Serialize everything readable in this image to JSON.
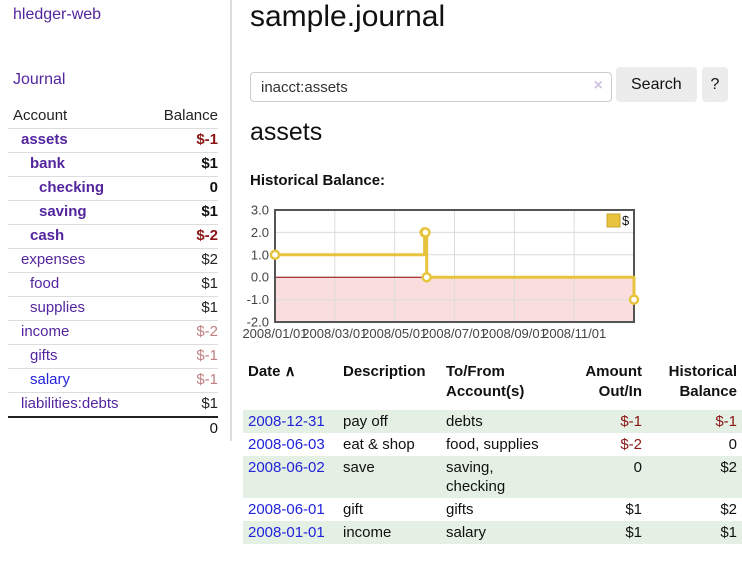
{
  "app": {
    "brand": "hledger-web",
    "nav_journal_label": "Journal"
  },
  "sidebar": {
    "header": {
      "account": "Account",
      "balance": "Balance"
    },
    "accounts": [
      {
        "name": "assets",
        "depth": 0,
        "bold": true,
        "link_color": "purple",
        "balance": "$-1",
        "balance_style": "neg-strong"
      },
      {
        "name": "bank",
        "depth": 1,
        "bold": true,
        "link_color": "purple",
        "balance": "$1",
        "balance_style": "strong"
      },
      {
        "name": "checking",
        "depth": 2,
        "bold": true,
        "link_color": "purple",
        "balance": "0",
        "balance_style": "strong"
      },
      {
        "name": "saving",
        "depth": 2,
        "bold": true,
        "link_color": "purple",
        "balance": "$1",
        "balance_style": "strong"
      },
      {
        "name": "cash",
        "depth": 1,
        "bold": true,
        "link_color": "purple",
        "balance": "$-2",
        "balance_style": "neg-strong"
      },
      {
        "name": "expenses",
        "depth": 0,
        "bold": false,
        "link_color": "purple",
        "balance": "$2",
        "balance_style": "plain"
      },
      {
        "name": "food",
        "depth": 1,
        "bold": false,
        "link_color": "purple",
        "balance": "$1",
        "balance_style": "plain"
      },
      {
        "name": "supplies",
        "depth": 1,
        "bold": false,
        "link_color": "purple",
        "balance": "$1",
        "balance_style": "plain"
      },
      {
        "name": "income",
        "depth": 0,
        "bold": false,
        "link_color": "purple",
        "balance": "$-2",
        "balance_style": "neg-dim"
      },
      {
        "name": "gifts",
        "depth": 1,
        "bold": false,
        "link_color": "purple",
        "balance": "$-1",
        "balance_style": "neg-dim"
      },
      {
        "name": "salary",
        "depth": 1,
        "bold": false,
        "link_color": "blue",
        "balance": "$-1",
        "balance_style": "neg-dim"
      },
      {
        "name": "liabilities:debts",
        "depth": 0,
        "bold": false,
        "link_color": "purple",
        "balance": "$1",
        "balance_style": "plain"
      }
    ],
    "total": "0"
  },
  "header": {
    "title": "sample.journal"
  },
  "search": {
    "value": "inacct:assets",
    "clear_icon": "×",
    "button_label": "Search",
    "help_label": "?"
  },
  "main": {
    "account_title": "assets",
    "chart_label": "Historical Balance:"
  },
  "chart_data": {
    "type": "line",
    "title": "Historical Balance",
    "step": true,
    "series": [
      {
        "name": "$",
        "color": "#e8c33d",
        "points": [
          {
            "date": "2008-01-01",
            "m": 0,
            "value": 1
          },
          {
            "date": "2008-06-01",
            "m": 5,
            "value": 2
          },
          {
            "date": "2008-06-02",
            "m": 5.03,
            "value": 2
          },
          {
            "date": "2008-06-03",
            "m": 5.07,
            "value": 0
          },
          {
            "date": "2008-12-31",
            "m": 12,
            "value": -1
          }
        ]
      }
    ],
    "x_ticks": [
      {
        "pos": 0,
        "label": "2008/01/01"
      },
      {
        "pos": 2,
        "label": "2008/03/01"
      },
      {
        "pos": 4,
        "label": "2008/05/01"
      },
      {
        "pos": 6,
        "label": "2008/07/01"
      },
      {
        "pos": 8,
        "label": "2008/09/01"
      },
      {
        "pos": 10,
        "label": "2008/11/01"
      }
    ],
    "y_ticks": [
      3.0,
      2.0,
      1.0,
      0.0,
      -1.0,
      -2.0
    ],
    "xlim_months": [
      0,
      12
    ],
    "ylim": [
      -2,
      3
    ],
    "grid_color": "#dcdcdc",
    "border_color": "#545454",
    "negative_region_color": "#fadddd",
    "zero_line_color": "#8b0000",
    "legend": {
      "label": "$",
      "position": "top-right"
    }
  },
  "register": {
    "columns": [
      {
        "label": "Date",
        "align": "left",
        "sort_indicator": "∧"
      },
      {
        "label": "Description",
        "align": "left"
      },
      {
        "label": "To/From Account(s)",
        "align": "left"
      },
      {
        "label": "Amount Out/In",
        "align": "right"
      },
      {
        "label": "Historical Balance",
        "align": "right"
      }
    ],
    "rows": [
      {
        "date": "2008-12-31",
        "description": "pay off",
        "accounts": "debts",
        "amount": "$-1",
        "amount_negative": true,
        "balance": "$-1",
        "balance_negative": true,
        "shaded": true
      },
      {
        "date": "2008-06-03",
        "description": "eat & shop",
        "accounts": "food, supplies",
        "amount": "$-2",
        "amount_negative": true,
        "balance": "0",
        "balance_negative": false,
        "shaded": false
      },
      {
        "date": "2008-06-02",
        "description": "save",
        "accounts": "saving, checking",
        "amount": "0",
        "amount_negative": false,
        "balance": "$2",
        "balance_negative": false,
        "shaded": true
      },
      {
        "date": "2008-06-01",
        "description": "gift",
        "accounts": "gifts",
        "amount": "$1",
        "amount_negative": false,
        "balance": "$2",
        "balance_negative": false,
        "shaded": false
      },
      {
        "date": "2008-01-01",
        "description": "income",
        "accounts": "salary",
        "amount": "$1",
        "amount_negative": false,
        "balance": "$1",
        "balance_negative": false,
        "shaded": true
      }
    ]
  }
}
